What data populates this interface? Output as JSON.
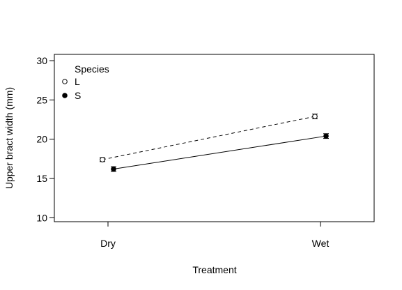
{
  "chart_data": {
    "type": "line",
    "title": "",
    "xlabel": "Treatment",
    "ylabel": "Upper bract width (mm)",
    "categories": [
      "Dry",
      "Wet"
    ],
    "ylim": [
      9.5,
      30.8
    ],
    "yticks": [
      10,
      15,
      20,
      25,
      30
    ],
    "grid": false,
    "legend": {
      "title": "Species",
      "position": "top-left"
    },
    "series": [
      {
        "name": "L",
        "marker": "open-circle",
        "line": "dashed",
        "values": [
          17.4,
          22.9
        ],
        "errors": [
          0.25,
          0.3
        ]
      },
      {
        "name": "S",
        "marker": "filled-circle",
        "line": "solid",
        "values": [
          16.2,
          20.4
        ],
        "errors": [
          0.3,
          0.3
        ]
      }
    ]
  }
}
